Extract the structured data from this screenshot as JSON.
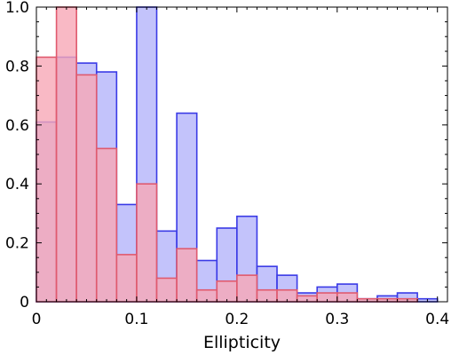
{
  "chart_data": {
    "type": "bar",
    "xlabel": "Ellipticity",
    "ylabel": "",
    "xlim": [
      0,
      0.41
    ],
    "ylim": [
      0,
      1.0
    ],
    "bin_width": 0.02,
    "xticks": [
      0,
      0.1,
      0.2,
      0.3,
      0.4
    ],
    "xtick_labels": [
      "0",
      "0.1",
      "0.2",
      "0.3",
      "0.4"
    ],
    "yticks": [
      0,
      0.2,
      0.4,
      0.6,
      0.8,
      1.0
    ],
    "ytick_labels": [
      "0",
      "0.2",
      "0.4",
      "0.6",
      "0.8",
      "1.0"
    ],
    "grid": false,
    "x": [
      0.0,
      0.02,
      0.04,
      0.06,
      0.08,
      0.1,
      0.12,
      0.14,
      0.16,
      0.18,
      0.2,
      0.22,
      0.24,
      0.26,
      0.28,
      0.3,
      0.32,
      0.34,
      0.36,
      0.38
    ],
    "series": [
      {
        "color": "#3a3ae6",
        "fill": "#b4b4fa",
        "values": [
          0.61,
          0.83,
          0.81,
          0.78,
          0.33,
          1.0,
          0.24,
          0.64,
          0.14,
          0.25,
          0.29,
          0.12,
          0.09,
          0.03,
          0.05,
          0.06,
          0.01,
          0.02,
          0.03,
          0.01
        ]
      },
      {
        "color": "#e05a6e",
        "fill": "#f7a8b6",
        "values": [
          0.83,
          1.0,
          0.77,
          0.52,
          0.16,
          0.4,
          0.08,
          0.18,
          0.04,
          0.07,
          0.09,
          0.04,
          0.04,
          0.02,
          0.03,
          0.03,
          0.01,
          0.01,
          0.01,
          0.0
        ]
      }
    ]
  }
}
